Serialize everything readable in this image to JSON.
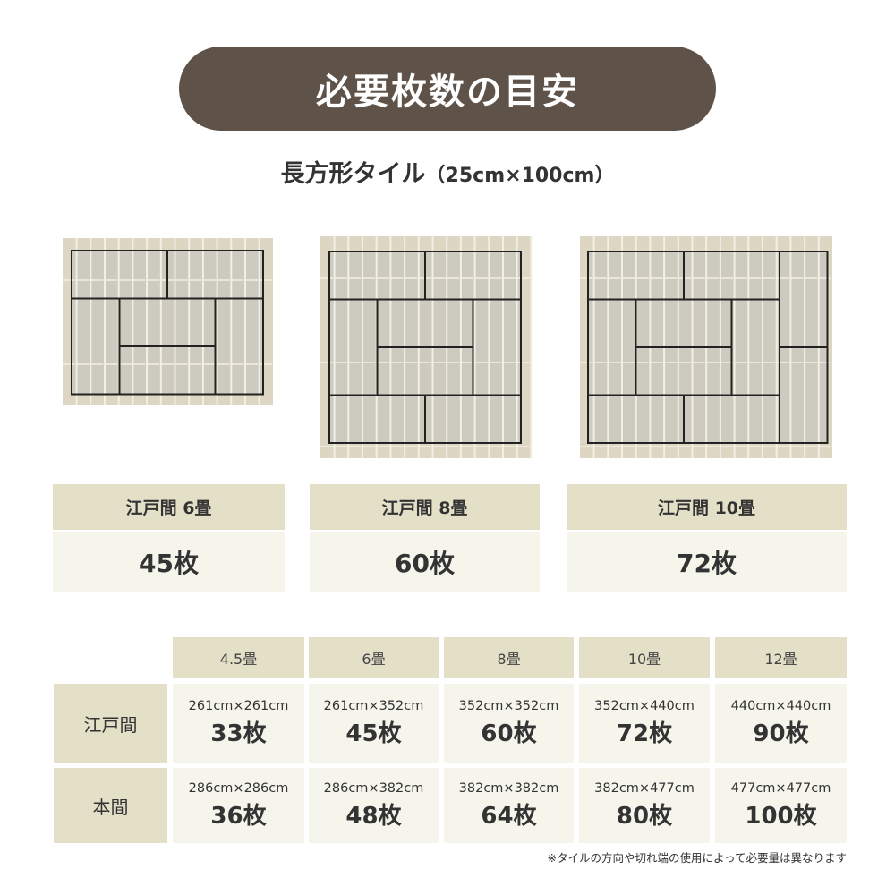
{
  "title": "必要枚数の目安",
  "subtitle": {
    "main": "長方形タイル",
    "dims": "（25cm×100cm）"
  },
  "colors": {
    "title_bg": "#5e5249",
    "label_bg": "#e4e0c8",
    "value_bg": "#f6f5ec",
    "tile_bg": "#ddd6c3",
    "tatami_fill": "#cdcac0"
  },
  "cards": [
    {
      "label": "江戸間 6畳",
      "count": "45枚"
    },
    {
      "label": "江戸間 8畳",
      "count": "60枚"
    },
    {
      "label": "江戸間 10畳",
      "count": "72枚"
    }
  ],
  "table": {
    "columns": [
      "4.5畳",
      "6畳",
      "8畳",
      "10畳",
      "12畳"
    ],
    "rows": [
      {
        "label": "江戸間",
        "cells": [
          {
            "size": "261cm×261cm",
            "count": "33枚"
          },
          {
            "size": "261cm×352cm",
            "count": "45枚"
          },
          {
            "size": "352cm×352cm",
            "count": "60枚"
          },
          {
            "size": "352cm×440cm",
            "count": "72枚"
          },
          {
            "size": "440cm×440cm",
            "count": "90枚"
          }
        ]
      },
      {
        "label": "本間",
        "cells": [
          {
            "size": "286cm×286cm",
            "count": "36枚"
          },
          {
            "size": "286cm×382cm",
            "count": "48枚"
          },
          {
            "size": "382cm×382cm",
            "count": "64枚"
          },
          {
            "size": "382cm×477cm",
            "count": "80枚"
          },
          {
            "size": "477cm×477cm",
            "count": "100枚"
          }
        ]
      }
    ]
  },
  "note": "※タイルの方向や切れ端の使用によって必要量は異なります"
}
